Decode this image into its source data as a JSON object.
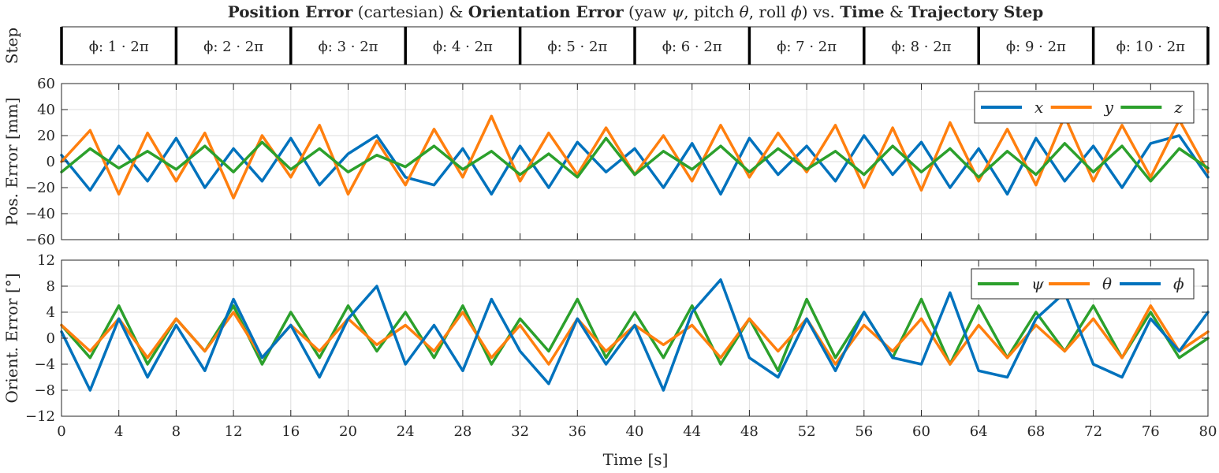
{
  "title": {
    "parts": [
      {
        "text": "Position Error",
        "style": "bold"
      },
      {
        "text": " (cartesian) & ",
        "style": "normal"
      },
      {
        "text": "Orientation Error",
        "style": "bold"
      },
      {
        "text": " (yaw ",
        "style": "normal"
      },
      {
        "text": "ψ",
        "style": "italic"
      },
      {
        "text": ", pitch ",
        "style": "normal"
      },
      {
        "text": "θ",
        "style": "italic"
      },
      {
        "text": ", roll ",
        "style": "normal"
      },
      {
        "text": "ϕ",
        "style": "italic"
      },
      {
        "text": ") vs. ",
        "style": "normal"
      },
      {
        "text": "Time",
        "style": "bold"
      },
      {
        "text": " & ",
        "style": "normal"
      },
      {
        "text": "Trajectory Step",
        "style": "bold"
      }
    ]
  },
  "step_axis": {
    "ylabel": "Step",
    "steps": [
      "ϕ: 1 · 2π",
      "ϕ: 2 · 2π",
      "ϕ: 3 · 2π",
      "ϕ: 4 · 2π",
      "ϕ: 5 · 2π",
      "ϕ: 6 · 2π",
      "ϕ: 7 · 2π",
      "ϕ: 8 · 2π",
      "ϕ: 9 · 2π",
      "ϕ: 10 · 2π"
    ]
  },
  "xlabel": "Time [s]",
  "colors": {
    "blue": "#0072BD",
    "orange": "#FF7F0E",
    "green": "#2CA02C",
    "axis": "#262626",
    "grid": "#dcdcdc"
  },
  "chart_data": [
    {
      "type": "line",
      "ylabel": "Pos. Error [mm]",
      "xlim": [
        0,
        80
      ],
      "ylim": [
        -60,
        60
      ],
      "xticks": [
        0,
        4,
        8,
        12,
        16,
        20,
        24,
        28,
        32,
        36,
        40,
        44,
        48,
        52,
        56,
        60,
        64,
        68,
        72,
        76,
        80
      ],
      "yticks": [
        -60,
        -40,
        -20,
        0,
        20,
        40,
        60
      ],
      "grid": true,
      "legend": "top-right",
      "series": [
        {
          "name": "x",
          "color": "#0072BD",
          "x": [
            0,
            2,
            4,
            6,
            8,
            10,
            12,
            14,
            16,
            18,
            20,
            22,
            24,
            26,
            28,
            30,
            32,
            34,
            36,
            38,
            40,
            42,
            44,
            46,
            48,
            50,
            52,
            54,
            56,
            58,
            60,
            62,
            64,
            66,
            68,
            70,
            72,
            74,
            76,
            78,
            80
          ],
          "y": [
            5,
            -22,
            12,
            -15,
            18,
            -20,
            10,
            -15,
            18,
            -18,
            6,
            20,
            -12,
            -18,
            10,
            -25,
            12,
            -20,
            15,
            -8,
            10,
            -20,
            14,
            -25,
            18,
            -10,
            12,
            -15,
            20,
            -10,
            15,
            -20,
            10,
            -25,
            18,
            -15,
            12,
            -20,
            14,
            20,
            -12
          ]
        },
        {
          "name": "y",
          "color": "#FF7F0E",
          "x": [
            0,
            2,
            4,
            6,
            8,
            10,
            12,
            14,
            16,
            18,
            20,
            22,
            24,
            26,
            28,
            30,
            32,
            34,
            36,
            38,
            40,
            42,
            44,
            46,
            48,
            50,
            52,
            54,
            56,
            58,
            60,
            62,
            64,
            66,
            68,
            70,
            72,
            74,
            76,
            78,
            80
          ],
          "y": [
            0,
            24,
            -25,
            22,
            -15,
            22,
            -28,
            20,
            -12,
            28,
            -25,
            16,
            -18,
            25,
            -12,
            35,
            -15,
            22,
            -10,
            26,
            -10,
            20,
            -15,
            28,
            -12,
            22,
            -8,
            28,
            -20,
            26,
            -22,
            30,
            -15,
            25,
            -18,
            35,
            -15,
            28,
            -12,
            32,
            -8
          ]
        },
        {
          "name": "z",
          "color": "#2CA02C",
          "x": [
            0,
            2,
            4,
            6,
            8,
            10,
            12,
            14,
            16,
            18,
            20,
            22,
            24,
            26,
            28,
            30,
            32,
            34,
            36,
            38,
            40,
            42,
            44,
            46,
            48,
            50,
            52,
            54,
            56,
            58,
            60,
            62,
            64,
            66,
            68,
            70,
            72,
            74,
            76,
            78,
            80
          ],
          "y": [
            -8,
            10,
            -5,
            8,
            -6,
            12,
            -8,
            15,
            -6,
            10,
            -8,
            5,
            -4,
            12,
            -6,
            8,
            -10,
            6,
            -12,
            18,
            -10,
            8,
            -6,
            12,
            -8,
            10,
            -6,
            8,
            -10,
            12,
            -8,
            10,
            -12,
            8,
            -10,
            14,
            -8,
            12,
            -15,
            10,
            -5
          ]
        }
      ]
    },
    {
      "type": "line",
      "ylabel": "Orient. Error [°]",
      "xlim": [
        0,
        80
      ],
      "ylim": [
        -12,
        12
      ],
      "xticks": [
        0,
        4,
        8,
        12,
        16,
        20,
        24,
        28,
        32,
        36,
        40,
        44,
        48,
        52,
        56,
        60,
        64,
        68,
        72,
        76,
        80
      ],
      "yticks": [
        -12,
        -8,
        -4,
        0,
        4,
        8,
        12
      ],
      "grid": true,
      "legend": "top-right",
      "series": [
        {
          "name": "ψ",
          "color": "#2CA02C",
          "x": [
            0,
            2,
            4,
            6,
            8,
            10,
            12,
            14,
            16,
            18,
            20,
            22,
            24,
            26,
            28,
            30,
            32,
            34,
            36,
            38,
            40,
            42,
            44,
            46,
            48,
            50,
            52,
            54,
            56,
            58,
            60,
            62,
            64,
            66,
            68,
            70,
            72,
            74,
            76,
            78,
            80
          ],
          "y": [
            2,
            -3,
            5,
            -4,
            3,
            -2,
            5,
            -4,
            4,
            -3,
            5,
            -2,
            4,
            -3,
            5,
            -4,
            3,
            -2,
            6,
            -3,
            4,
            -3,
            5,
            -4,
            3,
            -5,
            6,
            -3,
            4,
            -3,
            6,
            -4,
            5,
            -3,
            4,
            -2,
            5,
            -3,
            4,
            -3,
            0
          ]
        },
        {
          "name": "θ",
          "color": "#FF7F0E",
          "x": [
            0,
            2,
            4,
            6,
            8,
            10,
            12,
            14,
            16,
            18,
            20,
            22,
            24,
            26,
            28,
            30,
            32,
            34,
            36,
            38,
            40,
            42,
            44,
            46,
            48,
            50,
            52,
            54,
            56,
            58,
            60,
            62,
            64,
            66,
            68,
            70,
            72,
            74,
            76,
            78,
            80
          ],
          "y": [
            2,
            -2,
            3,
            -3,
            3,
            -2,
            4,
            -3,
            2,
            -2,
            3,
            -1,
            2,
            -2,
            4,
            -3,
            2,
            -4,
            3,
            -2,
            2,
            -1,
            2,
            -3,
            3,
            -2,
            3,
            -4,
            2,
            -2,
            3,
            -4,
            2,
            -3,
            2,
            -2,
            3,
            -3,
            5,
            -2,
            1
          ]
        },
        {
          "name": "ϕ",
          "color": "#0072BD",
          "x": [
            0,
            2,
            4,
            6,
            8,
            10,
            12,
            14,
            16,
            18,
            20,
            22,
            24,
            26,
            28,
            30,
            32,
            34,
            36,
            38,
            40,
            42,
            44,
            46,
            48,
            50,
            52,
            54,
            56,
            58,
            60,
            62,
            64,
            66,
            68,
            70,
            72,
            74,
            76,
            78,
            80
          ],
          "y": [
            1,
            -8,
            3,
            -6,
            2,
            -5,
            6,
            -3,
            2,
            -6,
            3,
            8,
            -4,
            2,
            -5,
            6,
            -2,
            -7,
            3,
            -4,
            2,
            -8,
            4,
            9,
            -3,
            -6,
            3,
            -5,
            4,
            -3,
            -4,
            7,
            -5,
            -6,
            3,
            7,
            -4,
            -6,
            3,
            -2,
            4
          ]
        }
      ]
    }
  ]
}
